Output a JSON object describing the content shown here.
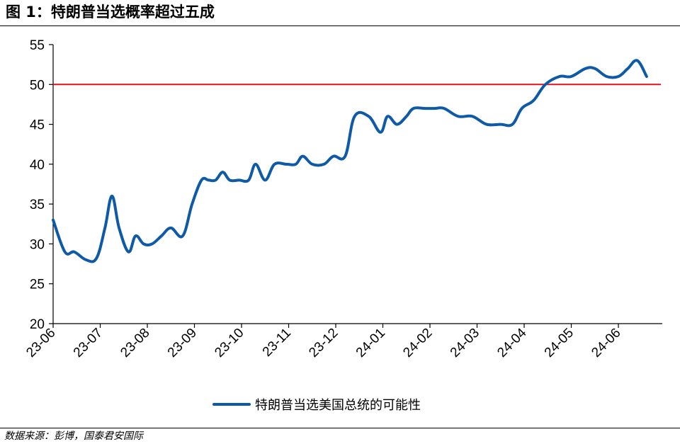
{
  "figure": {
    "title": "图 1：特朗普当选概率超过五成",
    "source": "数据来源：彭博，国泰君安国际"
  },
  "chart_data": {
    "type": "line",
    "title": "",
    "xlabel": "",
    "ylabel": "",
    "ylim": [
      20,
      55
    ],
    "yticks": [
      20,
      25,
      30,
      35,
      40,
      45,
      50,
      55
    ],
    "xticks": [
      "23-06",
      "23-07",
      "23-08",
      "23-09",
      "23-10",
      "23-11",
      "23-12",
      "24-01",
      "24-02",
      "24-03",
      "24-04",
      "24-05",
      "24-06"
    ],
    "grid": false,
    "legend_position": "bottom",
    "reference_line": {
      "value": 50,
      "color": "#e3101c"
    },
    "series": [
      {
        "name": "特朗普当选美国总统的可能性",
        "color": "#0e5aa7",
        "x": [
          0,
          0.25,
          0.45,
          0.7,
          0.92,
          1.1,
          1.25,
          1.4,
          1.6,
          1.75,
          1.92,
          2.1,
          2.3,
          2.5,
          2.75,
          2.95,
          3.15,
          3.3,
          3.45,
          3.6,
          3.75,
          3.95,
          4.15,
          4.3,
          4.5,
          4.7,
          4.95,
          5.15,
          5.3,
          5.5,
          5.75,
          5.95,
          6.2,
          6.4,
          6.7,
          6.95,
          7.1,
          7.3,
          7.5,
          7.65,
          7.9,
          8.1,
          8.3,
          8.6,
          8.9,
          9.2,
          9.5,
          9.75,
          9.95,
          10.2,
          10.45,
          10.75,
          11.0,
          11.3,
          11.5,
          11.75,
          12.0,
          12.2,
          12.4,
          12.6
        ],
        "values": [
          33,
          29,
          29,
          28,
          28.2,
          32,
          36,
          32,
          29,
          31,
          30,
          30,
          31,
          32,
          31,
          35,
          38,
          38,
          38,
          39,
          38,
          38,
          38,
          40,
          38,
          40,
          40,
          40,
          41,
          40,
          40,
          41,
          41,
          46,
          46,
          44,
          46,
          45,
          46,
          47,
          47,
          47,
          47,
          46,
          46,
          45,
          45,
          45,
          47,
          48,
          50,
          51,
          51,
          52,
          52,
          51,
          51,
          52,
          53,
          51
        ]
      }
    ]
  }
}
